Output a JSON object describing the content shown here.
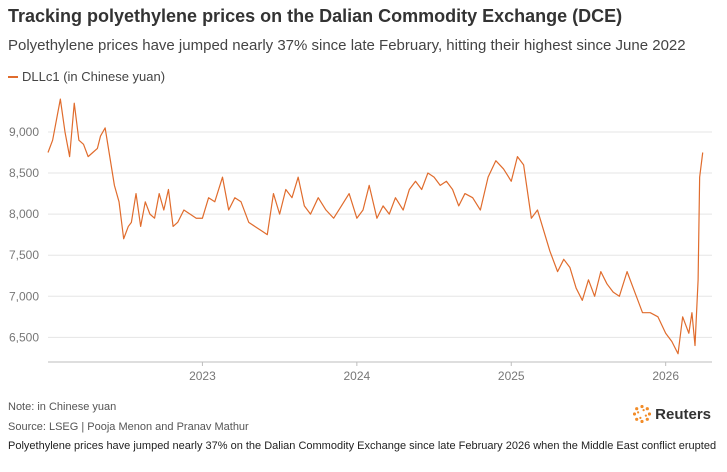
{
  "title": "Tracking polyethylene prices on the Dalian Commodity Exchange (DCE)",
  "subtitle": "Polyethylene prices have jumped nearly 37% since late February, hitting their highest since June 2022",
  "legend": {
    "label": "DLLc1 (in Chinese yuan)",
    "color": "#e06c2d"
  },
  "footer": {
    "note": "Note: in Chinese yuan",
    "source": "Source: LSEG | Pooja Menon and Pranav Mathur",
    "caption": "Polyethylene prices have jumped nearly 37% on the Dalian Commodity Exchange since late February 2026 when the Middle East conflict erupted"
  },
  "brand": {
    "name": "Reuters",
    "color": "#f28c28"
  },
  "chart_data": {
    "type": "line",
    "title": "Tracking polyethylene prices on the Dalian Commodity Exchange (DCE)",
    "xlabel": "",
    "ylabel": "",
    "grid": true,
    "ylim": [
      6200,
      9450
    ],
    "xlim": [
      2022.0,
      2026.3
    ],
    "yticks": [
      {
        "value": 6500,
        "label": "6,500"
      },
      {
        "value": 7000,
        "label": "7,000"
      },
      {
        "value": 7500,
        "label": "7,500"
      },
      {
        "value": 8000,
        "label": "8,000"
      },
      {
        "value": 8500,
        "label": "8,500"
      },
      {
        "value": 9000,
        "label": "9,000"
      }
    ],
    "xticks": [
      {
        "value": 2023.0,
        "label": "2023"
      },
      {
        "value": 2024.0,
        "label": "2024"
      },
      {
        "value": 2025.0,
        "label": "2025"
      },
      {
        "value": 2026.0,
        "label": "2026"
      }
    ],
    "series": [
      {
        "name": "DLLc1 (in Chinese yuan)",
        "color": "#e06c2d",
        "x": [
          2022.0,
          2022.03,
          2022.06,
          2022.08,
          2022.11,
          2022.14,
          2022.17,
          2022.2,
          2022.23,
          2022.26,
          2022.29,
          2022.32,
          2022.34,
          2022.37,
          2022.4,
          2022.43,
          2022.46,
          2022.49,
          2022.52,
          2022.54,
          2022.57,
          2022.6,
          2022.63,
          2022.66,
          2022.69,
          2022.72,
          2022.75,
          2022.78,
          2022.81,
          2022.84,
          2022.88,
          2022.92,
          2022.96,
          2023.0,
          2023.04,
          2023.08,
          2023.13,
          2023.17,
          2023.21,
          2023.25,
          2023.3,
          2023.34,
          2023.38,
          2023.42,
          2023.46,
          2023.5,
          2023.54,
          2023.58,
          2023.62,
          2023.66,
          2023.7,
          2023.75,
          2023.8,
          2023.85,
          2023.9,
          2023.95,
          2024.0,
          2024.04,
          2024.08,
          2024.13,
          2024.17,
          2024.21,
          2024.25,
          2024.3,
          2024.34,
          2024.38,
          2024.42,
          2024.46,
          2024.5,
          2024.54,
          2024.58,
          2024.62,
          2024.66,
          2024.7,
          2024.75,
          2024.8,
          2024.85,
          2024.9,
          2024.95,
          2025.0,
          2025.04,
          2025.08,
          2025.13,
          2025.17,
          2025.21,
          2025.25,
          2025.3,
          2025.34,
          2025.38,
          2025.42,
          2025.46,
          2025.5,
          2025.54,
          2025.58,
          2025.62,
          2025.66,
          2025.7,
          2025.75,
          2025.8,
          2025.85,
          2025.9,
          2025.95,
          2026.0,
          2026.04,
          2026.08,
          2026.11,
          2026.13,
          2026.15,
          2026.17,
          2026.19,
          2026.21,
          2026.22,
          2026.24
        ],
        "values": [
          8750,
          8900,
          9200,
          9400,
          9000,
          8700,
          9350,
          8900,
          8850,
          8700,
          8750,
          8800,
          8950,
          9050,
          8700,
          8350,
          8150,
          7700,
          7850,
          7900,
          8250,
          7850,
          8150,
          8000,
          7950,
          8250,
          8050,
          8300,
          7850,
          7900,
          8050,
          8000,
          7950,
          7950,
          8200,
          8150,
          8450,
          8050,
          8200,
          8150,
          7900,
          7850,
          7800,
          7750,
          8250,
          8000,
          8300,
          8200,
          8450,
          8100,
          8000,
          8200,
          8050,
          7950,
          8100,
          8250,
          7950,
          8050,
          8350,
          7950,
          8100,
          8000,
          8200,
          8050,
          8300,
          8400,
          8300,
          8500,
          8450,
          8350,
          8400,
          8300,
          8100,
          8250,
          8200,
          8050,
          8450,
          8650,
          8550,
          8400,
          8700,
          8600,
          7950,
          8050,
          7800,
          7550,
          7300,
          7450,
          7350,
          7100,
          6950,
          7200,
          7000,
          7300,
          7150,
          7050,
          7000,
          7300,
          7050,
          6800,
          6800,
          6750,
          6550,
          6450,
          6300,
          6750,
          6650,
          6550,
          6800,
          6400,
          7200,
          8450,
          8750
        ]
      }
    ]
  }
}
